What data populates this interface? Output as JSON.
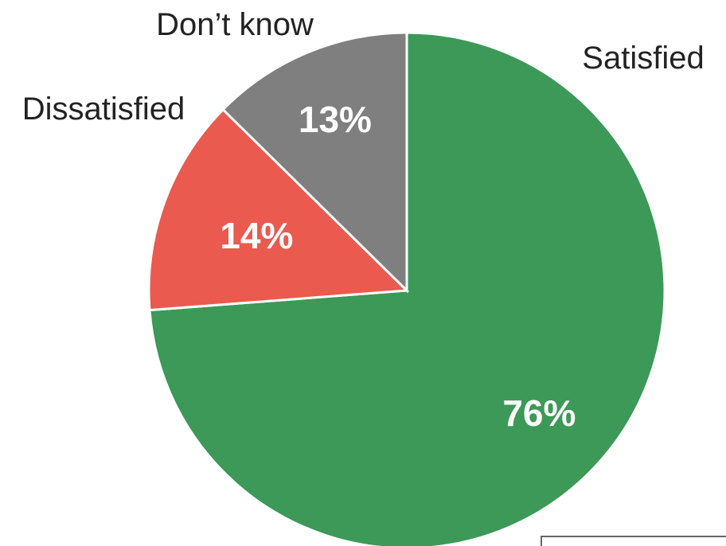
{
  "chart_data": {
    "type": "pie",
    "title": "",
    "slices": [
      {
        "label": "Satisfied",
        "value": 76,
        "display": "76%",
        "color": "#3d9958"
      },
      {
        "label": "Dissatisfied",
        "value": 14,
        "display": "14%",
        "color": "#ea5a4f"
      },
      {
        "label": "Don’t know",
        "value": 13,
        "display": "13%",
        "color": "#7f7f7f"
      }
    ],
    "start_angle_deg": 0,
    "direction": "clockwise",
    "legend": "none"
  }
}
